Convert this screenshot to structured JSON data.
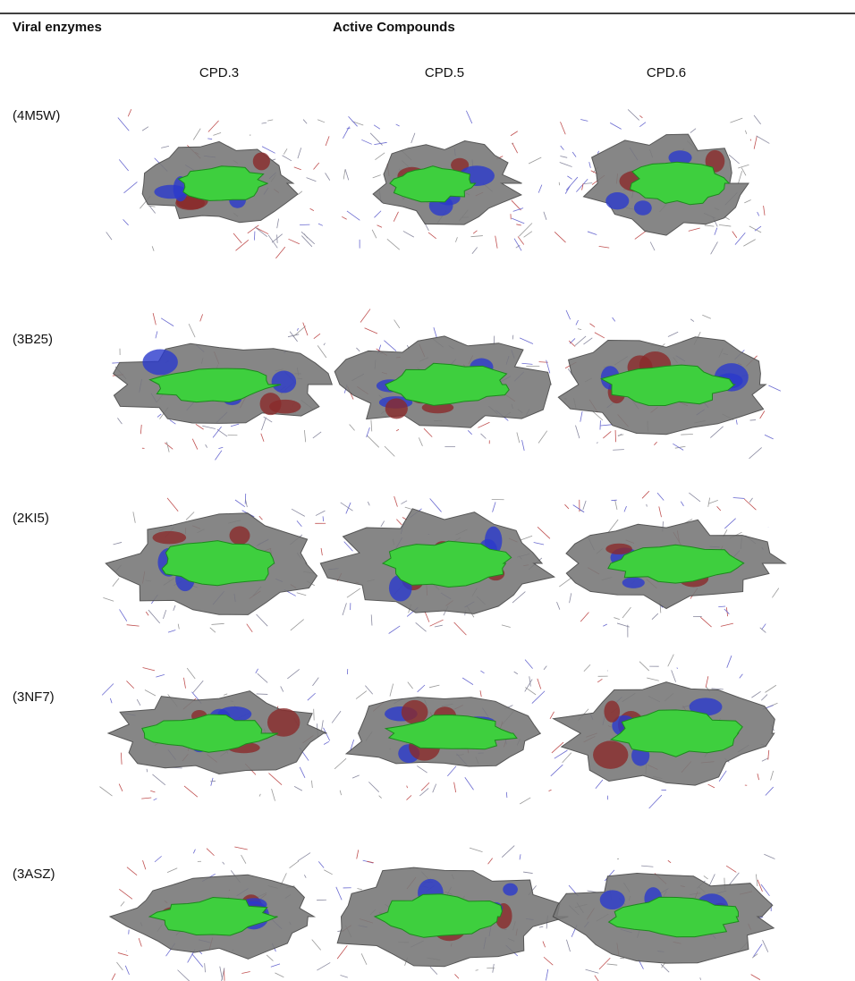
{
  "header": {
    "enzymes": "Viral enzymes",
    "compounds": "Active Compounds"
  },
  "compounds": [
    "CPD.3",
    "CPD.5",
    "CPD.6"
  ],
  "rows": [
    "(4M5W)",
    "(3B25)",
    "(2KI5)",
    "(3NF7)",
    "(3ASZ)"
  ]
}
